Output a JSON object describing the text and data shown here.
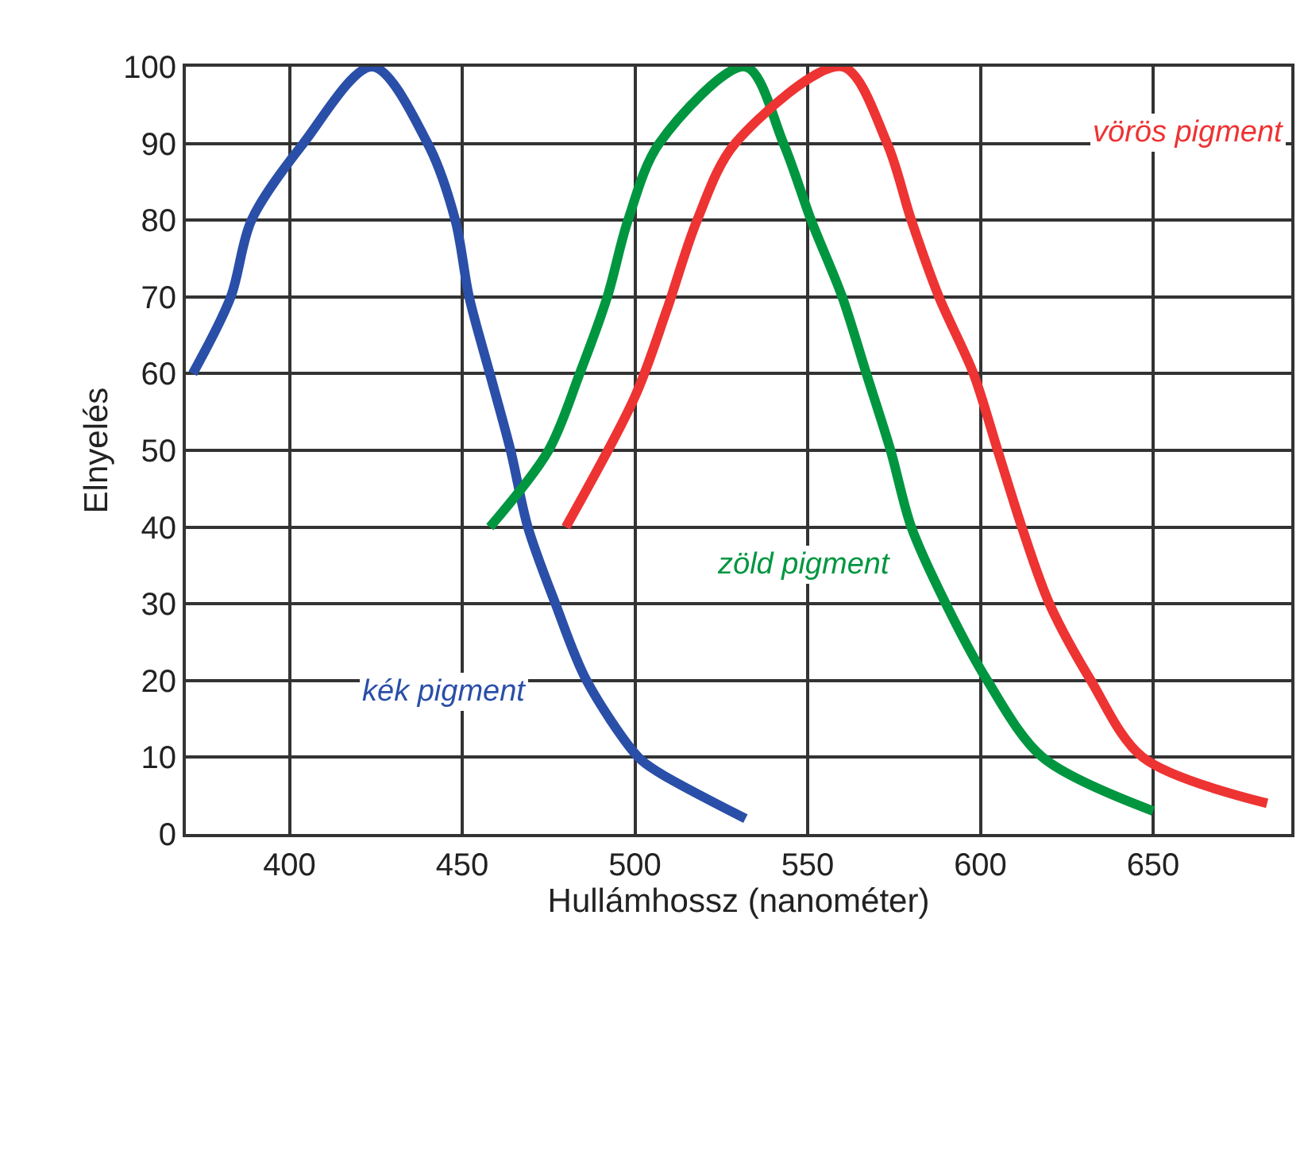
{
  "chart_data": {
    "type": "line",
    "xlabel": "Hullámhossz (nanométer)",
    "ylabel": "Elnyelés",
    "xlim": [
      370,
      690
    ],
    "xticks": [
      400,
      450,
      500,
      550,
      600,
      650
    ],
    "ylim": [
      0,
      100
    ],
    "yticks": [
      0,
      10,
      20,
      30,
      40,
      50,
      60,
      70,
      80,
      90,
      100
    ],
    "grid": true,
    "line_style": "solid",
    "series": [
      {
        "name": "kék pigment",
        "color": "#2a4fa8",
        "x": [
          372,
          383,
          389,
          404,
          424,
          440,
          448,
          452,
          458,
          464,
          469,
          477,
          486,
          501,
          507,
          532
        ],
        "values": [
          60,
          70,
          80,
          90,
          100,
          90,
          80,
          70,
          60,
          50,
          40,
          30,
          20,
          10,
          8,
          2
        ]
      },
      {
        "name": "zöld pigment",
        "color": "#009640",
        "x": [
          458,
          475,
          484,
          492,
          498,
          507,
          532,
          543,
          551,
          560,
          567,
          574,
          580,
          590,
          602,
          618,
          650
        ],
        "values": [
          40,
          50,
          60,
          70,
          80,
          90,
          100,
          90,
          80,
          70,
          60,
          50,
          40,
          30,
          20,
          10,
          3
        ]
      },
      {
        "name": "vörös pigment",
        "color": "#ee3333",
        "x": [
          480,
          500,
          509,
          518,
          529,
          560,
          573,
          580,
          588,
          598,
          605,
          612,
          620,
          632,
          647,
          683
        ],
        "values": [
          40,
          57,
          68,
          80,
          90,
          100,
          90,
          80,
          70,
          60,
          50,
          40,
          30,
          20,
          10,
          4
        ]
      }
    ]
  }
}
